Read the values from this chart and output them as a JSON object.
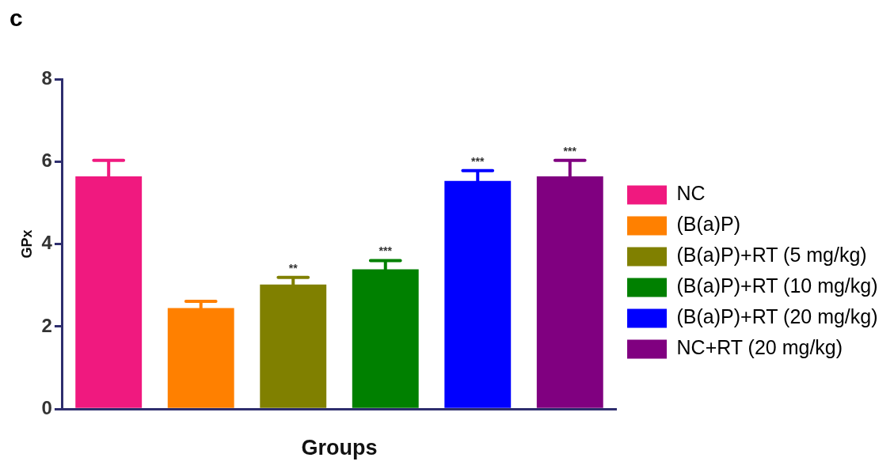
{
  "chart_data": {
    "type": "bar",
    "title": "c",
    "xlabel": "Groups",
    "ylabel": "GPx",
    "categories": [
      null,
      null,
      null,
      null,
      null,
      null
    ],
    "series": [
      {
        "name": "NC",
        "color": "#f0197f",
        "values": [
          5.64,
          null,
          null,
          null,
          null,
          null
        ],
        "errors": [
          0.39,
          null,
          null,
          null,
          null,
          null
        ]
      },
      {
        "name": "(B(a)P)",
        "color": "#ff8000",
        "values": [
          null,
          2.45,
          null,
          null,
          null,
          null
        ],
        "errors": [
          null,
          0.16,
          null,
          null,
          null,
          null
        ]
      },
      {
        "name": "(B(a)P)+RT (5 mg/kg)",
        "color": "#808000",
        "values": [
          null,
          null,
          3.02,
          null,
          null,
          null
        ],
        "errors": [
          null,
          null,
          0.17,
          null,
          null,
          null
        ]
      },
      {
        "name": "(B(a)P)+RT (10 mg/kg)",
        "color": "#008000",
        "values": [
          null,
          null,
          null,
          3.39,
          null,
          null
        ],
        "errors": [
          null,
          null,
          null,
          0.21,
          null,
          null
        ]
      },
      {
        "name": "(B(a)P)+RT (20 mg/kg)",
        "color": "#0000ff",
        "values": [
          null,
          null,
          null,
          null,
          5.53,
          null
        ],
        "errors": [
          null,
          null,
          null,
          null,
          0.25,
          null
        ]
      },
      {
        "name": "NC+RT (20 mg/kg)",
        "color": "#800080",
        "values": [
          null,
          null,
          null,
          null,
          null,
          5.64
        ],
        "errors": [
          null,
          null,
          null,
          null,
          null,
          0.39
        ]
      }
    ],
    "annotations": [
      {
        "text": "**",
        "y": 3.19
      },
      {
        "text": "***",
        "y": 3.6
      },
      {
        "text": "***",
        "y": 5.78
      },
      {
        "text": "***",
        "y": 6.03
      }
    ],
    "ylim": [
      0,
      8
    ],
    "yticks": [
      0,
      2,
      4,
      6,
      8
    ],
    "grid": false,
    "legend": "right"
  }
}
